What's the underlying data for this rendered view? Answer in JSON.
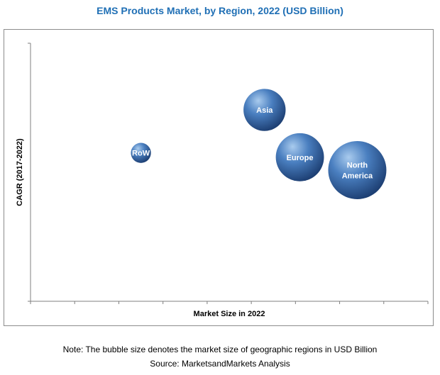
{
  "chart_data": {
    "type": "scatter",
    "title": "EMS Products Market, by Region, 2022 (USD Billion)",
    "xlabel": "Market Size in 2022",
    "ylabel": "CAGR (2017-2022)",
    "xlim": [
      0,
      9
    ],
    "ylim": [
      0,
      6
    ],
    "grid": false,
    "series": [
      {
        "points": [
          {
            "label": "RoW",
            "x": 2.5,
            "y": 3.45,
            "size": 1.0
          },
          {
            "label": "Asia",
            "x": 5.3,
            "y": 4.45,
            "size": 2.1
          },
          {
            "label": "Europe",
            "x": 6.1,
            "y": 3.35,
            "size": 2.4
          },
          {
            "label": "North America",
            "x": 7.4,
            "y": 3.05,
            "size": 2.9
          }
        ]
      }
    ]
  },
  "notes": {
    "bubble_note": "Note: The bubble size denotes the market size of geographic regions in USD Billion",
    "source": "Source: MarketsandMarkets Analysis"
  },
  "colors": {
    "title": "#1f6fb5",
    "bubble_light": "#a9cbee",
    "bubble_mid": "#4a7fc0",
    "bubble_dark": "#1d3f73",
    "axis": "#7f7f7f"
  }
}
